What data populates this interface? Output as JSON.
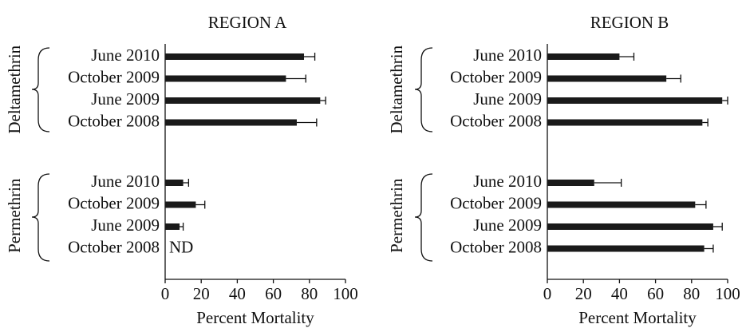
{
  "chart_data": [
    {
      "type": "bar",
      "orientation": "horizontal",
      "title": "REGION A",
      "xlabel": "Percent Mortality",
      "xlim": [
        0,
        100
      ],
      "xticks": [
        0,
        20,
        40,
        60,
        80,
        100
      ],
      "color": "#1a1a1a",
      "groups": [
        {
          "name": "Deltamethrin",
          "categories": [
            "June 2010",
            "October 2009",
            "June 2009",
            "October 2008"
          ],
          "values": [
            77,
            67,
            86,
            73
          ],
          "errors": [
            6,
            11,
            3,
            11
          ]
        },
        {
          "name": "Permethrin",
          "categories": [
            "June 2010",
            "October 2009",
            "June 2009",
            "October 2008"
          ],
          "values": [
            10,
            17,
            8,
            null
          ],
          "errors": [
            3,
            5,
            2,
            null
          ],
          "value_labels": [
            null,
            null,
            null,
            "ND"
          ]
        }
      ]
    },
    {
      "type": "bar",
      "orientation": "horizontal",
      "title": "REGION B",
      "xlabel": "Percent Mortality",
      "xlim": [
        0,
        100
      ],
      "xticks": [
        0,
        20,
        40,
        60,
        80,
        100
      ],
      "color": "#1a1a1a",
      "groups": [
        {
          "name": "Deltamethrin",
          "categories": [
            "June 2010",
            "October 2009",
            "June 2009",
            "October 2008"
          ],
          "values": [
            40,
            66,
            97,
            86
          ],
          "errors": [
            8,
            8,
            3,
            3
          ]
        },
        {
          "name": "Permethrin",
          "categories": [
            "June 2010",
            "October 2009",
            "June 2009",
            "October 2008"
          ],
          "values": [
            26,
            82,
            92,
            87
          ],
          "errors": [
            15,
            6,
            5,
            5
          ]
        }
      ]
    }
  ]
}
